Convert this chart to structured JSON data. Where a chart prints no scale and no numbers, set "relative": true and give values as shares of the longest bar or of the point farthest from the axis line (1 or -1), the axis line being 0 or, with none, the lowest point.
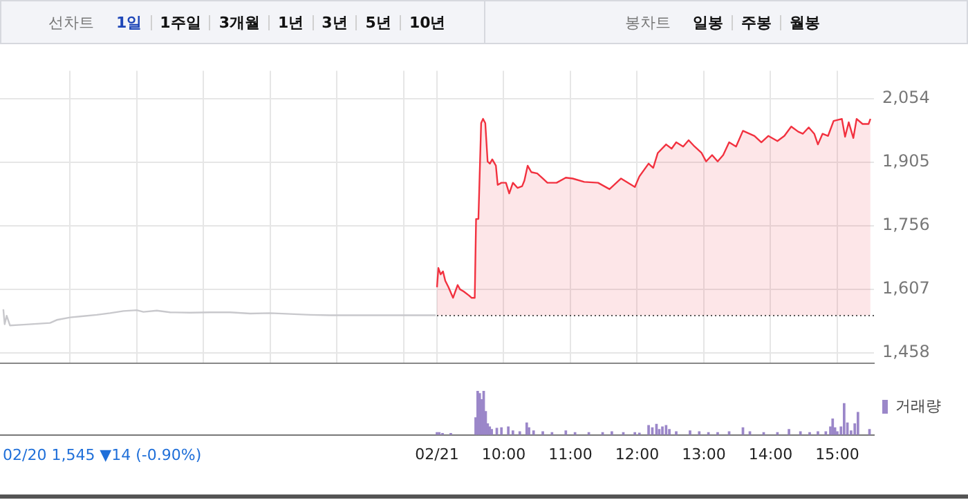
{
  "chart_data": [
    {
      "type": "other",
      "annotations": [
        "선차트",
        "1일",
        "1주일",
        "3개월",
        "1년",
        "3년",
        "5년",
        "10년",
        "봉차트",
        "일봉",
        "주봉",
        "월봉"
      ]
    },
    {
      "type": "line",
      "marker": "none",
      "grid": true,
      "tick_labels": "y",
      "xlim": [
        2.45,
        15.55
      ],
      "ylim": [
        1434,
        2120
      ],
      "xticks": [
        {
          "value": 3.5,
          "label": null
        },
        {
          "value": 4.5,
          "label": null
        },
        {
          "value": 5.5,
          "label": null
        },
        {
          "value": 6.5,
          "label": null
        },
        {
          "value": 7.5,
          "label": null
        },
        {
          "value": 8.5,
          "label": null
        },
        {
          "value": 9,
          "label": null
        },
        {
          "value": 10,
          "label": null
        },
        {
          "value": 11,
          "label": null
        },
        {
          "value": 12,
          "label": null
        },
        {
          "value": 13,
          "label": null
        },
        {
          "value": 14,
          "label": null
        },
        {
          "value": 15,
          "label": null
        }
      ],
      "yticks": [
        {
          "value": 1458,
          "label": "1,458"
        },
        {
          "value": 1607,
          "label": "1,607"
        },
        {
          "value": 1756,
          "label": "1,756"
        },
        {
          "value": 1905,
          "label": "1,905"
        },
        {
          "value": 2054,
          "label": "2,054"
        }
      ],
      "ref_lines": [
        {
          "axis": "y",
          "value": 1545,
          "color": "#555555",
          "line_style": "dotted"
        }
      ],
      "series": [
        {
          "type": "line",
          "color": "#c8c8cc",
          "x": [
            2.5,
            2.52,
            2.55,
            2.6,
            2.8,
            3.0,
            3.2,
            3.3,
            3.5,
            3.7,
            3.9,
            4.1,
            4.3,
            4.5,
            4.6,
            4.8,
            5.0,
            5.3,
            5.6,
            5.9,
            6.2,
            6.5,
            6.8,
            7.1,
            7.4,
            7.7,
            8.0,
            8.5,
            8.98
          ],
          "values": [
            1560,
            1525,
            1545,
            1522,
            1524,
            1526,
            1528,
            1535,
            1541,
            1544,
            1547,
            1551,
            1556,
            1558,
            1554,
            1557,
            1553,
            1552,
            1553,
            1553,
            1550,
            1551,
            1549,
            1547,
            1546,
            1546,
            1546,
            1546,
            1546
          ]
        },
        {
          "type": "area",
          "color": "#f2313f",
          "x": [
            9.0,
            9.021,
            9.055,
            9.09,
            9.124,
            9.172,
            9.241,
            9.31,
            9.345,
            9.4,
            9.483,
            9.517,
            9.566,
            9.586,
            9.621,
            9.662,
            9.69,
            9.724,
            9.759,
            9.793,
            9.828,
            9.883,
            9.91,
            9.966,
            10.034,
            10.083,
            10.138,
            10.207,
            10.276,
            10.31,
            10.359,
            10.414,
            10.503,
            10.586,
            10.655,
            10.793,
            10.931,
            11.034,
            11.207,
            11.414,
            11.586,
            11.759,
            11.966,
            12.034,
            12.172,
            12.241,
            12.31,
            12.434,
            12.517,
            12.586,
            12.69,
            12.772,
            12.862,
            12.966,
            13.034,
            13.124,
            13.207,
            13.29,
            13.379,
            13.483,
            13.586,
            13.759,
            13.862,
            13.966,
            14.103,
            14.207,
            14.31,
            14.414,
            14.483,
            14.572,
            14.655,
            14.71,
            14.779,
            14.862,
            14.945,
            15.069,
            15.117,
            15.172,
            15.241,
            15.29,
            15.379,
            15.469,
            15.497
          ],
          "values": [
            1612,
            1657,
            1642,
            1649,
            1627,
            1612,
            1587,
            1617,
            1607,
            1602,
            1592,
            1587,
            1587,
            1772,
            1772,
            1997,
            2007,
            1997,
            1907,
            1902,
            1912,
            1897,
            1852,
            1857,
            1857,
            1832,
            1857,
            1845,
            1849,
            1862,
            1897,
            1882,
            1879,
            1867,
            1857,
            1857,
            1869,
            1867,
            1859,
            1857,
            1842,
            1867,
            1847,
            1872,
            1902,
            1892,
            1927,
            1947,
            1937,
            1952,
            1942,
            1957,
            1942,
            1927,
            1907,
            1922,
            1907,
            1922,
            1952,
            1942,
            1979,
            1967,
            1952,
            1967,
            1955,
            1967,
            1989,
            1977,
            1972,
            1987,
            1972,
            1947,
            1972,
            1967,
            2002,
            2007,
            1965,
            1999,
            1962,
            2007,
            1995,
            1995,
            2007
          ]
        }
      ]
    },
    {
      "type": "bar",
      "relative": true,
      "legend": "right",
      "tick_labels": "x",
      "xlim": [
        2.45,
        15.55
      ],
      "xticks": [
        {
          "value": 9,
          "label": "02/21"
        },
        {
          "value": 10,
          "label": "10:00"
        },
        {
          "value": 11,
          "label": "11:00"
        },
        {
          "value": 12,
          "label": "12:00"
        },
        {
          "value": 13,
          "label": "13:00"
        },
        {
          "value": 14,
          "label": "14:00"
        },
        {
          "value": 15,
          "label": "15:00"
        }
      ],
      "annotations": [
        "02/20 1,545 ▼14 (-0.90%)"
      ],
      "series": [
        {
          "name": "거래량",
          "color": "#9b87c9",
          "x": [
            9.0,
            9.034,
            9.083,
            9.207,
            9.58,
            9.61,
            9.64,
            9.67,
            9.7,
            9.73,
            9.76,
            9.79,
            9.82,
            9.897,
            9.966,
            10.069,
            10.138,
            10.241,
            10.345,
            10.379,
            10.448,
            10.586,
            10.724,
            10.931,
            11.069,
            11.276,
            11.483,
            11.621,
            11.793,
            11.966,
            12.034,
            12.172,
            12.228,
            12.29,
            12.331,
            12.379,
            12.434,
            12.483,
            12.586,
            12.793,
            12.931,
            13.069,
            13.207,
            13.379,
            13.586,
            13.69,
            13.897,
            14.103,
            14.276,
            14.448,
            14.586,
            14.71,
            14.828,
            14.897,
            14.931,
            14.966,
            15.0,
            15.055,
            15.103,
            15.152,
            15.207,
            15.262,
            15.31,
            15.483
          ],
          "values": [
            0.05,
            0.05,
            0.03,
            0.03,
            0.39,
            1,
            0.94,
            0.8,
            1,
            0.53,
            0.25,
            0.18,
            0.12,
            0.15,
            0.16,
            0.18,
            0.09,
            0.07,
            0.27,
            0.16,
            0.09,
            0.07,
            0.05,
            0.09,
            0.05,
            0.05,
            0.05,
            0.07,
            0.05,
            0.05,
            0.04,
            0.21,
            0.16,
            0.24,
            0.12,
            0.18,
            0.21,
            0.12,
            0.07,
            0.09,
            0.07,
            0.05,
            0.05,
            0.07,
            0.16,
            0.07,
            0.05,
            0.05,
            0.12,
            0.07,
            0.05,
            0.07,
            0.07,
            0.18,
            0.36,
            0.16,
            0.07,
            0.18,
            0.71,
            0.27,
            0.09,
            0.25,
            0.51,
            0.12
          ]
        }
      ]
    }
  ]
}
